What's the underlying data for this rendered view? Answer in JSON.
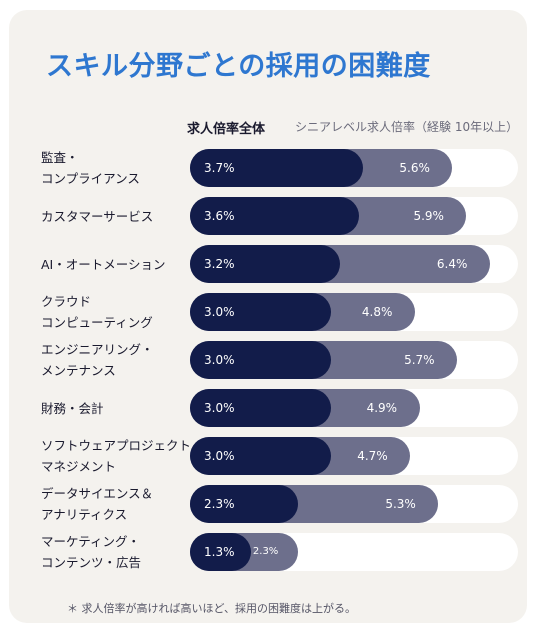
{
  "chart_data": {
    "type": "bar",
    "title": "スキル分野ごとの採用の困難度",
    "series": [
      {
        "name": "求人倍率全体",
        "values": [
          3.7,
          3.6,
          3.2,
          3.0,
          3.0,
          3.0,
          3.0,
          2.3,
          1.3
        ]
      },
      {
        "name": "シニアレベル求人倍率（経験 10年以上）",
        "values": [
          5.6,
          5.9,
          6.4,
          4.8,
          5.7,
          4.9,
          4.7,
          5.3,
          2.3
        ]
      }
    ],
    "categories": [
      "監査・\nコンプライアンス",
      "カスタマーサービス",
      "AI・オートメーション",
      "クラウド\nコンピューティング",
      "エンジニアリング・\nメンテナンス",
      "財務・会計",
      "ソフトウェアプロジェクト\nマネジメント",
      "データサイエンス＆\nアナリティクス",
      "マーケティング・\nコンテンツ・広告"
    ],
    "value_labels_all": [
      "3.7%",
      "3.6%",
      "3.2%",
      "3.0%",
      "3.0%",
      "3.0%",
      "3.0%",
      "2.3%",
      "1.3%"
    ],
    "value_labels_senior": [
      "5.6%",
      "5.9%",
      "6.4%",
      "4.8%",
      "5.7%",
      "4.9%",
      "4.7%",
      "5.3%",
      "2.3%"
    ],
    "xlim": [
      0,
      7.0
    ],
    "colors": {
      "overall": "#121c4a",
      "senior": "#6d6f8c",
      "track": "#ffffff",
      "title": "#2e77d0"
    },
    "footnote": "＊ 求人倍率が高ければ高いほど、採用の困難度は上がる。"
  }
}
